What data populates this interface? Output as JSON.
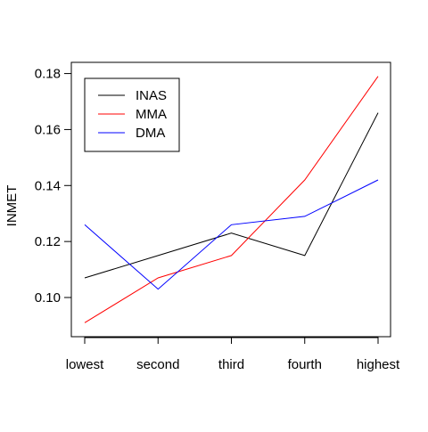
{
  "chart_data": {
    "type": "line",
    "title": "",
    "xlabel": "",
    "ylabel": "INMET",
    "categories": [
      "lowest",
      "second",
      "third",
      "fourth",
      "highest"
    ],
    "ylim": [
      0.086,
      0.184
    ],
    "yticks": [
      0.1,
      0.12,
      0.14,
      0.16,
      0.18
    ],
    "ytick_labels": [
      "0.10",
      "0.12",
      "0.14",
      "0.16",
      "0.18"
    ],
    "grid": false,
    "legend": "top-left",
    "series": [
      {
        "name": "INAS",
        "color": "#000000",
        "values": [
          0.107,
          0.115,
          0.123,
          0.115,
          0.166
        ]
      },
      {
        "name": "MMA",
        "color": "#ff0000",
        "values": [
          0.091,
          0.107,
          0.115,
          0.142,
          0.179
        ]
      },
      {
        "name": "DMA",
        "color": "#0000ff",
        "values": [
          0.126,
          0.103,
          0.126,
          0.129,
          0.142
        ]
      }
    ]
  }
}
